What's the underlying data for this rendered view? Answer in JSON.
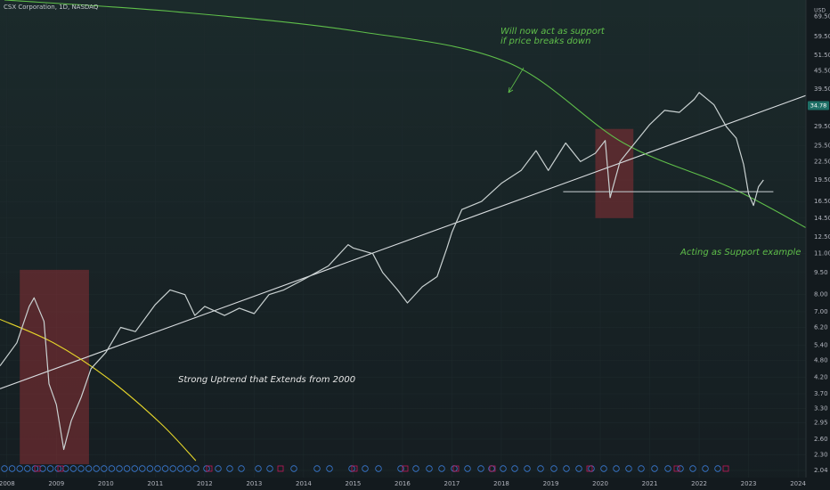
{
  "chart_data": {
    "type": "line",
    "title": "CSX Corporation, 1D, NASDAQ",
    "y_unit": "USD",
    "log_scale": true,
    "xlim": [
      2007.86,
      2024.16
    ],
    "ylim": [
      1.93,
      79
    ],
    "xticks": [
      2008,
      2009,
      2010,
      2011,
      2012,
      2013,
      2014,
      2015,
      2016,
      2017,
      2018,
      2019,
      2020,
      2021,
      2022,
      2023,
      2024
    ],
    "yticks": [
      {
        "value": 2.04,
        "label": "2.04"
      },
      {
        "value": 2.3,
        "label": "2.30"
      },
      {
        "value": 2.6,
        "label": "2.60"
      },
      {
        "value": 2.95,
        "label": "2.95"
      },
      {
        "value": 3.3,
        "label": "3.30"
      },
      {
        "value": 3.7,
        "label": "3.70"
      },
      {
        "value": 4.2,
        "label": "4.20"
      },
      {
        "value": 4.8,
        "label": "4.80"
      },
      {
        "value": 5.4,
        "label": "5.40"
      },
      {
        "value": 6.2,
        "label": "6.20"
      },
      {
        "value": 7,
        "label": "7.00"
      },
      {
        "value": 8,
        "label": "8.00"
      },
      {
        "value": 9.5,
        "label": "9.50"
      },
      {
        "value": 11,
        "label": "11.00"
      },
      {
        "value": 12.5,
        "label": "12.50"
      },
      {
        "value": 14.5,
        "label": "14.50"
      },
      {
        "value": 16.5,
        "label": "16.50"
      },
      {
        "value": 19.5,
        "label": "19.50"
      },
      {
        "value": 22.5,
        "label": "22.50"
      },
      {
        "value": 25.5,
        "label": "25.50"
      },
      {
        "value": 29.5,
        "label": "29.50"
      },
      {
        "value": 39.5,
        "label": "39.50"
      },
      {
        "value": 45.5,
        "label": "45.50"
      },
      {
        "value": 51.5,
        "label": "51.50"
      },
      {
        "value": 59.5,
        "label": "59.50"
      },
      {
        "value": 69.5,
        "label": "69.50"
      }
    ],
    "last_value": 34.78,
    "last_value_label": "34.78",
    "series": [
      {
        "color": "#c9d1d1",
        "x": [
          2007.86,
          2008.2,
          2008.45,
          2008.55,
          2008.75,
          2008.85,
          2009.0,
          2009.15,
          2009.3,
          2009.5,
          2009.7,
          2010.0,
          2010.3,
          2010.6,
          2011.0,
          2011.3,
          2011.6,
          2011.8,
          2012.0,
          2012.4,
          2012.7,
          2013.0,
          2013.3,
          2013.6,
          2014.0,
          2014.5,
          2014.9,
          2015.0,
          2015.4,
          2015.6,
          2015.9,
          2016.1,
          2016.4,
          2016.7,
          2016.9,
          2017.0,
          2017.2,
          2017.6,
          2018.0,
          2018.4,
          2018.7,
          2018.95,
          2019.3,
          2019.6,
          2019.9,
          2020.1,
          2020.2,
          2020.4,
          2020.7,
          2021.0,
          2021.3,
          2021.6,
          2021.9,
          2022.0,
          2022.3,
          2022.55,
          2022.75,
          2022.9,
          2023.0,
          2023.1,
          2023.2,
          2023.3
        ],
        "values": [
          4.6,
          5.5,
          7.3,
          7.8,
          6.5,
          4.0,
          3.4,
          2.4,
          3.0,
          3.6,
          4.5,
          5.1,
          6.2,
          6.0,
          7.4,
          8.3,
          8.0,
          6.8,
          7.3,
          6.8,
          7.2,
          6.9,
          8.0,
          8.3,
          9.0,
          10.0,
          11.8,
          11.5,
          11.0,
          9.5,
          8.3,
          7.5,
          8.5,
          9.2,
          11.5,
          13.0,
          15.5,
          16.5,
          19.0,
          21.0,
          24.5,
          21.0,
          26.0,
          22.5,
          24.0,
          26.5,
          17.0,
          22.5,
          26.0,
          30.0,
          33.5,
          33.0,
          36.5,
          38.5,
          35.0,
          29.5,
          27.0,
          22.0,
          17.5,
          16.0,
          18.5,
          19.5
        ]
      }
    ],
    "trendlines": [
      {
        "color": "#d9dde0",
        "x": [
          2007.86,
          2024.25
        ],
        "values": [
          3.85,
          38.1
        ]
      },
      {
        "color": "#5fbf4a",
        "x": [
          2007.95,
          2011.46,
          2015.07,
          2018.13,
          2020.47,
          2022.63,
          2024.25
        ],
        "values": [
          79,
          72,
          62,
          48.6,
          26.0,
          18.4,
          13.2
        ]
      },
      {
        "color": "#e5d52a",
        "x": [
          2007.86,
          2008.94,
          2010.02,
          2011.1,
          2011.82
        ],
        "values": [
          6.6,
          5.5,
          4.2,
          2.95,
          2.2
        ]
      },
      {
        "color": "#b8bfc2",
        "x": [
          2019.25,
          2023.5
        ],
        "values": [
          17.8,
          17.8
        ]
      }
    ],
    "zones": [
      {
        "color": "#8a2f35",
        "x": [
          2008.26,
          2009.66
        ],
        "values": [
          2.14,
          9.7
        ]
      },
      {
        "color": "#8a2f35",
        "x": [
          2019.9,
          2020.67
        ],
        "values": [
          14.5,
          29.0
        ]
      }
    ],
    "annotations": [
      "Will now act as support",
      "if price breaks down",
      "Acting as Support example",
      "Strong Uptrend that Extends from 2000"
    ]
  }
}
